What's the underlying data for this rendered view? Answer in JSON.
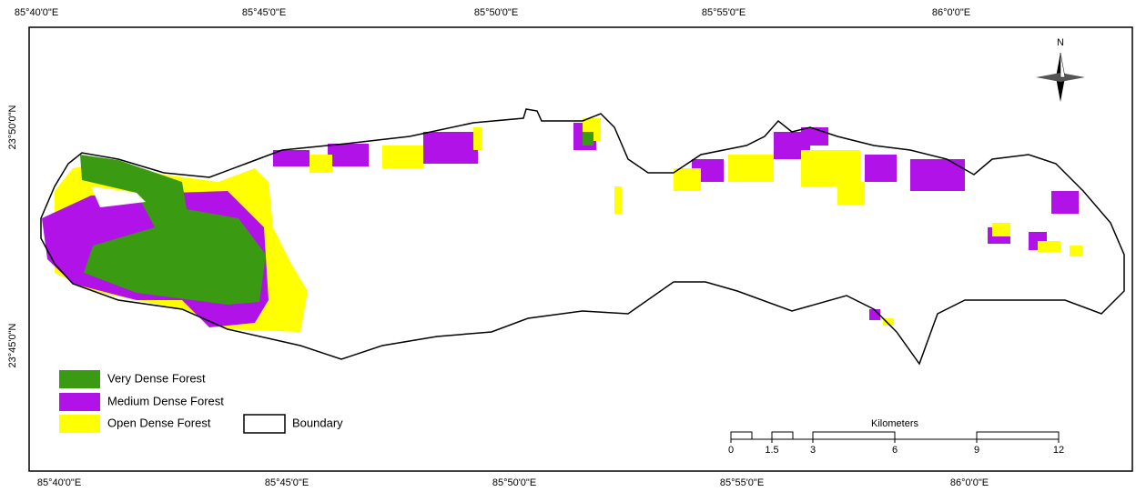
{
  "map": {
    "top_labels": [
      "85°40'0\"E",
      "85°45'0\"E",
      "85°50'0\"E",
      "85°55'0\"E",
      "86°0'0\"E"
    ],
    "bottom_labels": [
      "85°40'0\"E",
      "85°45'0\"E",
      "85°50'0\"E",
      "85°55'0\"E",
      "86°0'0\"E"
    ],
    "left_labels": [
      "23°50'0\"N",
      "23°45'0\"N"
    ],
    "north": "N",
    "legend": [
      {
        "label": "Very Dense Forest",
        "color": "#3a9b12"
      },
      {
        "label": "Medium Dense Forest",
        "color": "#b012e8"
      },
      {
        "label": "Open Dense Forest",
        "color": "#ffff00"
      },
      {
        "label": "Boundary",
        "color": "#ffffff"
      }
    ],
    "scale_bar": {
      "title": "Kilometers",
      "ticks": [
        0,
        1.5,
        3,
        6,
        9,
        12
      ]
    }
  }
}
